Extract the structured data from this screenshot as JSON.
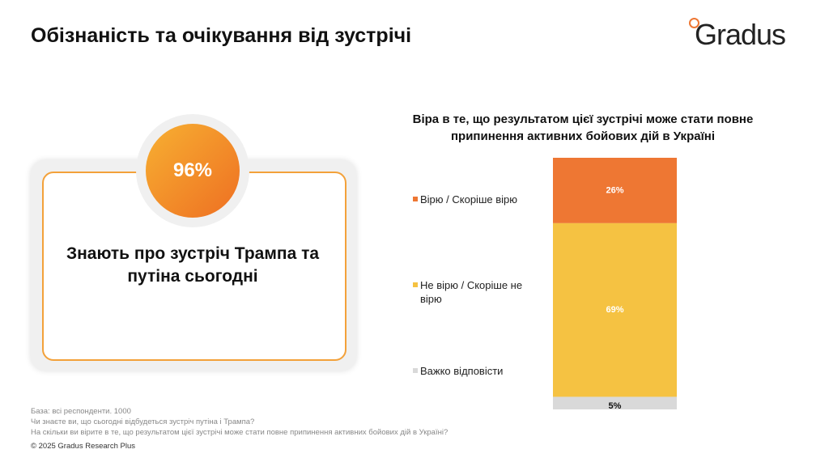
{
  "header": {
    "title": "Обізнаність та очікування від зустрічі",
    "logo": "Gradus"
  },
  "card": {
    "value": "96%",
    "text": "Знають про зустріч Трампа та путіна сьогодні"
  },
  "chart_data": {
    "type": "stacked-bar",
    "title": "Віра в те, що результатом цієї зустрічі може стати повне припинення активних бойових дій в Україні",
    "categories": [
      null
    ],
    "series": [
      {
        "name": "Вірю / Скоріше вірю",
        "color": "#ee7733",
        "values": [
          26
        ],
        "value_labels": [
          "26%"
        ]
      },
      {
        "name": "Не вірю / Скоріше не вірю",
        "color": "#f5c242",
        "values": [
          69
        ],
        "value_labels": [
          "69%"
        ]
      },
      {
        "name": "Важко відповісти",
        "color": "#d9d9d9",
        "values": [
          5
        ],
        "value_labels": [
          "5%"
        ]
      }
    ]
  },
  "footnotes": [
    "База: всі респонденти. 1000",
    "Чи знаєте ви, що сьогодні відбудеться зустріч путіна і Трампа?",
    "На скільки ви вірите в те, що результатом цієї зустрічі може стати повне припинення активних бойових дій в Україні?"
  ],
  "copyright": "© 2025 Gradus Research Plus"
}
